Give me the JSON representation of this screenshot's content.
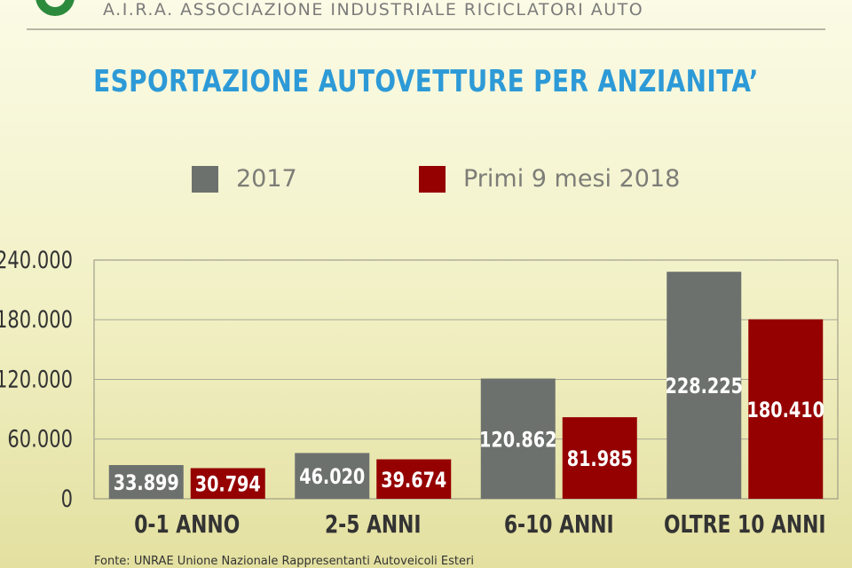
{
  "header": {
    "org_name": "A.I.R.A. ASSOCIAZIONE INDUSTRIALE RICICLATORI AUTO"
  },
  "source": "Fonte: UNRAE Unione Nazionale Rappresentanti Autoveicoli Esteri",
  "colors": {
    "title": "#2d9ad7",
    "series_2017": "#6d716e",
    "series_2018": "#950000",
    "logo_green": "#2c8a3c",
    "logo_blue": "#2a5fb0",
    "logo_red": "#d23a2a"
  },
  "legend": [
    {
      "label": "2017"
    },
    {
      "label": "Primi 9 mesi 2018"
    }
  ],
  "chart_data": {
    "type": "bar",
    "title": "ESPORTAZIONE AUTOVETTURE PER ANZIANITA’",
    "xlabel": "",
    "ylabel": "",
    "categories": [
      "0-1 ANNO",
      "2-5 ANNI",
      "6-10 ANNI",
      "OLTRE 10 ANNI"
    ],
    "series": [
      {
        "name": "2017",
        "values": [
          33899,
          46020,
          120862,
          228225
        ],
        "labels": [
          "33.899",
          "46.020",
          "120.862",
          "228.225"
        ]
      },
      {
        "name": "Primi 9 mesi 2018",
        "values": [
          30794,
          39674,
          81985,
          180410
        ],
        "labels": [
          "30.794",
          "39.674",
          "81.985",
          "180.410"
        ]
      }
    ],
    "ylim": [
      0,
      240000
    ],
    "yticks": [
      0,
      60000,
      120000,
      180000,
      240000
    ],
    "ytick_labels": [
      "0",
      "60.000",
      "120.000",
      "180.000",
      "240.000"
    ],
    "grid": true,
    "legend_position": "top-center"
  }
}
